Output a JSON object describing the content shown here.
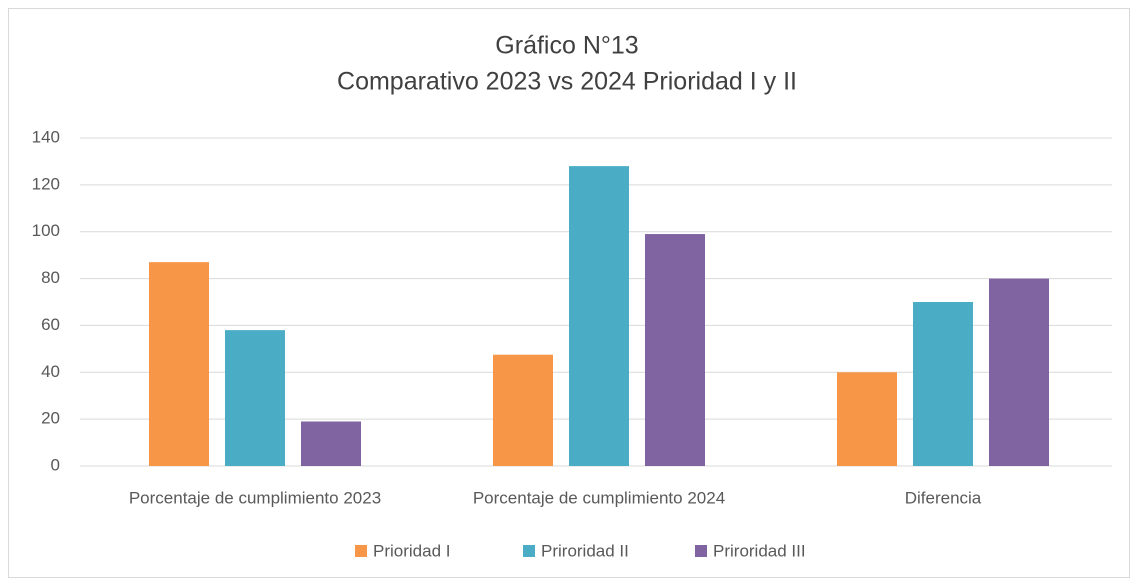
{
  "chart_data": {
    "type": "bar",
    "title": "Gráfico N°13",
    "subtitle": "Comparativo 2023 vs 2024 Prioridad I y II",
    "categories": [
      "Porcentaje de cumplimiento 2023",
      "Porcentaje de cumplimiento 2024",
      "Diferencia"
    ],
    "series": [
      {
        "name": "Prioridad I",
        "color": "#f79646",
        "values": [
          87,
          47.5,
          40
        ]
      },
      {
        "name": "Priroridad II",
        "color": "#4bacc6",
        "values": [
          58,
          128,
          70
        ]
      },
      {
        "name": "Priroridad III",
        "color": "#8064a2",
        "values": [
          19,
          99,
          80
        ]
      }
    ],
    "ylim": [
      0,
      140
    ],
    "yticks": [
      0,
      20,
      40,
      60,
      80,
      100,
      120,
      140
    ],
    "grid": true,
    "legend": "bottom"
  }
}
